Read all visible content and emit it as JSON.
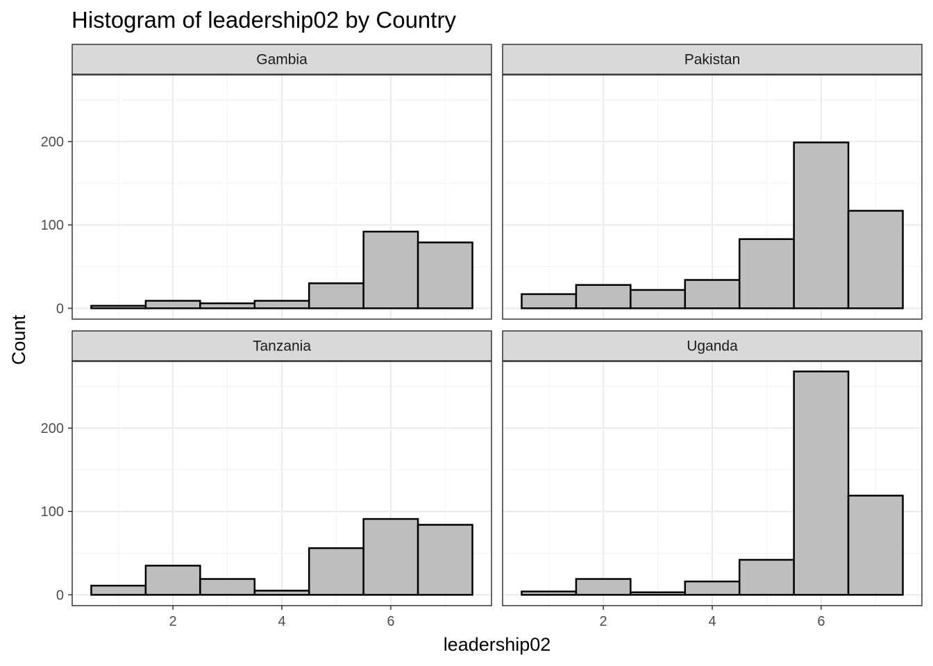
{
  "chart_data": {
    "type": "bar",
    "title": "Histogram of leadership02 by Country",
    "xlabel": "leadership02",
    "ylabel": "Count",
    "xlim": [
      0.15,
      7.85
    ],
    "ylim": [
      -13,
      280
    ],
    "x_ticks": [
      2,
      4,
      6
    ],
    "y_ticks": [
      0,
      100,
      200
    ],
    "bin_centers": [
      1,
      2,
      3,
      4,
      5,
      6,
      7
    ],
    "bin_width": 1,
    "grid": true,
    "fill": "#bebebe",
    "stroke": "#000000",
    "panels": [
      {
        "name": "Gambia",
        "values": [
          3,
          9,
          6,
          9,
          30,
          92,
          79
        ]
      },
      {
        "name": "Pakistan",
        "values": [
          17,
          28,
          22,
          34,
          83,
          199,
          117
        ]
      },
      {
        "name": "Tanzania",
        "values": [
          11,
          35,
          19,
          5,
          56,
          91,
          84
        ]
      },
      {
        "name": "Uganda",
        "values": [
          4,
          19,
          3,
          16,
          42,
          268,
          119
        ]
      }
    ]
  }
}
